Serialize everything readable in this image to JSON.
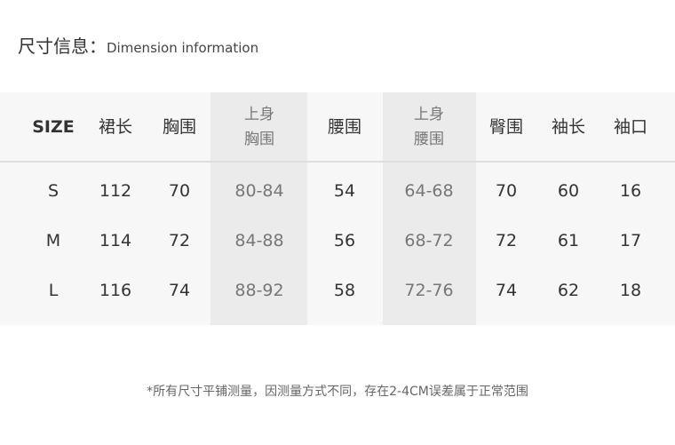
{
  "title": {
    "zh": "尺寸信息：",
    "en": "Dimension information"
  },
  "table": {
    "headers": [
      "SIZE",
      "裙长",
      "胸围",
      "上身\n胸围",
      "腰围",
      "上身\n腰围",
      "臀围",
      "袖长",
      "袖口"
    ],
    "rows": [
      [
        "S",
        "112",
        "70",
        "80-84",
        "54",
        "64-68",
        "70",
        "60",
        "16"
      ],
      [
        "M",
        "114",
        "72",
        "84-88",
        "56",
        "68-72",
        "72",
        "61",
        "17"
      ],
      [
        "L",
        "116",
        "74",
        "88-92",
        "58",
        "72-76",
        "74",
        "62",
        "18"
      ]
    ]
  },
  "note": "*所有尺寸平铺测量，因测量方式不同，存在2-4CM误差属于正常范围",
  "colors": {
    "table_bg": "#f7f7f7",
    "highlight_column": "#ebebeb"
  }
}
